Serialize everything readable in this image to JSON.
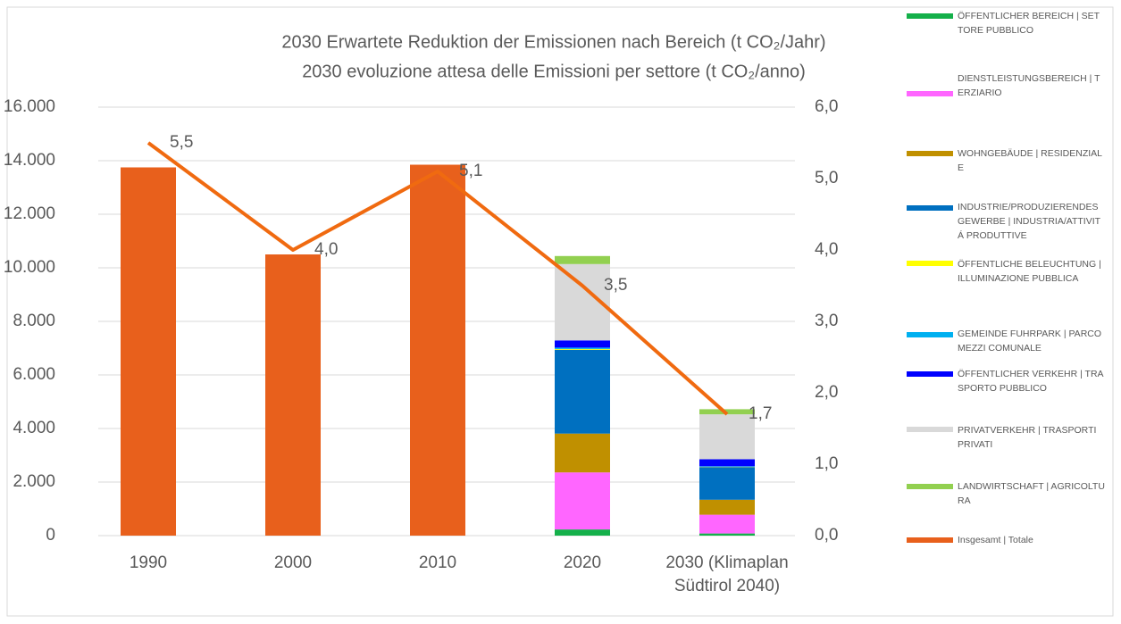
{
  "chart_data": {
    "type": "bar",
    "stacked": true,
    "title": [
      "2030 Erwartete Reduktion der Emissionen nach Bereich (t CO₂/Jahr)",
      "2030 evoluzione attesa delle Emissioni per settore (t CO₂/anno)"
    ],
    "categories": [
      "1990",
      "2000",
      "2010",
      "2020",
      "2030 (Klimaplan Südtirol 2040)"
    ],
    "series": [
      {
        "name": "ÖFFENTLICHER BEREICH | SETTORE PUBBLICO",
        "color": "#14b04a",
        "values": [
          null,
          null,
          null,
          230,
          80
        ]
      },
      {
        "name": "DIENSTLEISTUNGSBEREICH | TERZIARIO",
        "color": "#ff66ff",
        "values": [
          null,
          null,
          null,
          2130,
          700
        ]
      },
      {
        "name": "WOHNGEBÄUDE | RESIDENZIALE",
        "color": "#c09000",
        "values": [
          null,
          null,
          null,
          1450,
          560
        ]
      },
      {
        "name": "INDUSTRIE/PRODUZIERENDES GEWERBE | INDUSTRIA/ATTIVITÁ PRODUTTIVE",
        "color": "#0070c0",
        "values": [
          null,
          null,
          null,
          3130,
          1220
        ]
      },
      {
        "name": "ÖFFENTLICHE BELEUCHTUNG | ILLUMINAZIONE PUBBLICA",
        "color": "#ffff00",
        "values": [
          null,
          null,
          null,
          30,
          10
        ]
      },
      {
        "name": "GEMEINDE FUHRPARK | PARCO MEZZI COMUNALE",
        "color": "#00b0f0",
        "values": [
          null,
          null,
          null,
          50,
          20
        ]
      },
      {
        "name": "ÖFFENTLICHER VERKEHR | TRASPORTO PUBBLICO",
        "color": "#0000ff",
        "values": [
          null,
          null,
          null,
          270,
          260
        ]
      },
      {
        "name": "PRIVATVERKEHR | TRASPORTI PRIVATI",
        "color": "#d9d9d9",
        "values": [
          null,
          null,
          null,
          2850,
          1680
        ]
      },
      {
        "name": "LANDWIRTSCHAFT | AGRICOLTURA",
        "color": "#92d050",
        "values": [
          null,
          null,
          null,
          300,
          190
        ]
      },
      {
        "name": "Insgesamt | Totale",
        "color": "#e8601c",
        "values": [
          13750,
          10500,
          13850,
          null,
          null
        ]
      }
    ],
    "line_series": {
      "type": "line",
      "axis": "y2",
      "color": "#f06a10",
      "values": [
        5.5,
        4.0,
        5.1,
        3.5,
        1.7
      ],
      "value_labels": [
        "5,5",
        "4,0",
        "5,1",
        "3,5",
        "1,7"
      ]
    },
    "ylim": [
      0,
      16000
    ],
    "yticks": [
      0,
      {
        "value": 2000,
        "label": "2.000"
      },
      {
        "value": 4000,
        "label": "4.000"
      },
      {
        "value": 6000,
        "label": "6.000"
      },
      {
        "value": 8000,
        "label": "8.000"
      },
      {
        "value": 10000,
        "label": "10.000"
      },
      {
        "value": 12000,
        "label": "12.000"
      },
      {
        "value": 14000,
        "label": "14.000"
      },
      {
        "value": 16000,
        "label": "16.000"
      }
    ],
    "y2lim": [
      0,
      6
    ],
    "y2ticks": [
      {
        "value": 0,
        "label": "0,0"
      },
      {
        "value": 1,
        "label": "1,0"
      },
      {
        "value": 2,
        "label": "2,0"
      },
      {
        "value": 3,
        "label": "3,0"
      },
      {
        "value": 4,
        "label": "4,0"
      },
      {
        "value": 5,
        "label": "5,0"
      },
      {
        "value": 6,
        "label": "6,0"
      }
    ],
    "grid": true,
    "legend": "right"
  }
}
